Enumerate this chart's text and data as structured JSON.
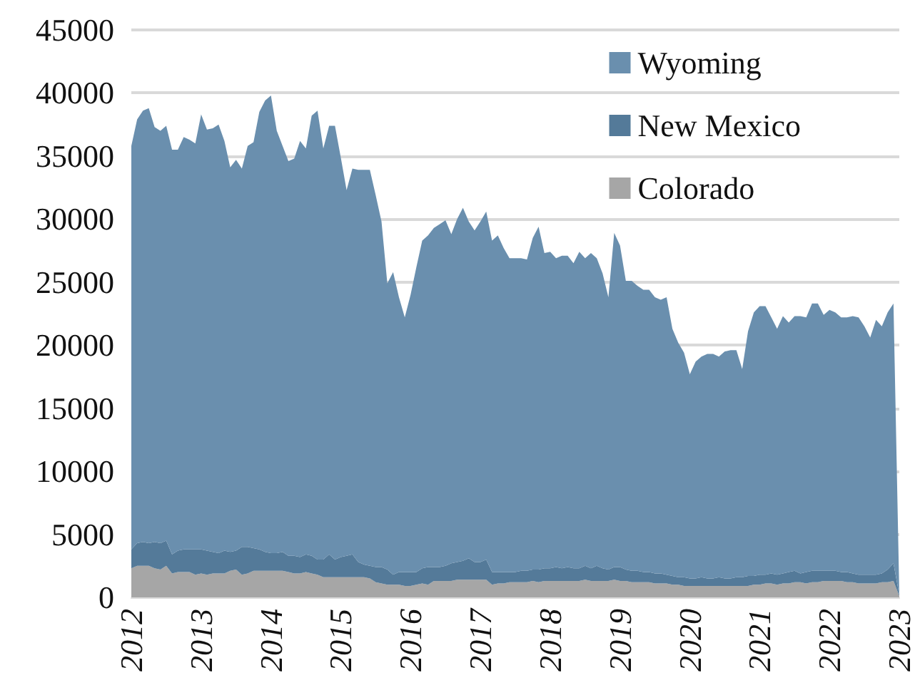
{
  "chart_data": {
    "type": "area",
    "stacked": true,
    "grid": "y",
    "legend": "top right",
    "ylim": [
      0,
      45000
    ],
    "yticks": [
      0,
      5000,
      10000,
      15000,
      20000,
      25000,
      30000,
      35000,
      40000,
      45000
    ],
    "categories": [
      "2012",
      null,
      null,
      null,
      null,
      null,
      null,
      null,
      null,
      null,
      null,
      null,
      "2013",
      null,
      null,
      null,
      null,
      null,
      null,
      null,
      null,
      null,
      null,
      null,
      "2014",
      null,
      null,
      null,
      null,
      null,
      null,
      null,
      null,
      null,
      null,
      null,
      "2015",
      null,
      null,
      null,
      null,
      null,
      null,
      null,
      null,
      null,
      null,
      null,
      "2016",
      null,
      null,
      null,
      null,
      null,
      null,
      null,
      null,
      null,
      null,
      null,
      "2017",
      null,
      null,
      null,
      null,
      null,
      null,
      null,
      null,
      null,
      null,
      null,
      "2018",
      null,
      null,
      null,
      null,
      null,
      null,
      null,
      null,
      null,
      null,
      null,
      "2019",
      null,
      null,
      null,
      null,
      null,
      null,
      null,
      null,
      null,
      null,
      null,
      "2020",
      null,
      null,
      null,
      null,
      null,
      null,
      null,
      null,
      null,
      null,
      null,
      "2021",
      null,
      null,
      null,
      null,
      null,
      null,
      null,
      null,
      null,
      null,
      null,
      "2022",
      null,
      null,
      null,
      null,
      null,
      null,
      null,
      null,
      null,
      null,
      null,
      "2023"
    ],
    "series": [
      {
        "name": "Colorado",
        "color": "#a6a6a6",
        "values": [
          2300,
          2500,
          2500,
          2500,
          2300,
          2200,
          2500,
          1900,
          2000,
          2000,
          2000,
          1800,
          1900,
          1800,
          1900,
          1900,
          1900,
          2100,
          2200,
          1800,
          1900,
          2100,
          2100,
          2100,
          2100,
          2100,
          2100,
          2000,
          1900,
          1900,
          2000,
          1900,
          1800,
          1600,
          1600,
          1600,
          1600,
          1600,
          1600,
          1600,
          1600,
          1500,
          1200,
          1100,
          1000,
          1000,
          1000,
          900,
          900,
          1000,
          1100,
          1000,
          1300,
          1300,
          1300,
          1300,
          1400,
          1400,
          1400,
          1400,
          1400,
          1400,
          1000,
          1100,
          1100,
          1200,
          1200,
          1200,
          1200,
          1300,
          1200,
          1300,
          1300,
          1300,
          1300,
          1300,
          1300,
          1300,
          1400,
          1300,
          1300,
          1300,
          1300,
          1400,
          1300,
          1300,
          1200,
          1200,
          1200,
          1200,
          1100,
          1100,
          1100,
          1000,
          1000,
          900,
          900,
          900,
          900,
          900,
          900,
          900,
          900,
          900,
          900,
          900,
          900,
          1000,
          1000,
          1100,
          1100,
          1000,
          1100,
          1100,
          1200,
          1200,
          1100,
          1200,
          1200,
          1300,
          1300,
          1300,
          1300,
          1200,
          1200,
          1100,
          1100,
          1100,
          1100,
          1200,
          1200,
          1300,
          100
        ]
      },
      {
        "name": "New Mexico",
        "color": "#547a99",
        "values": [
          1500,
          1800,
          1900,
          1800,
          2100,
          2100,
          2000,
          1500,
          1700,
          1800,
          1800,
          2000,
          1900,
          1900,
          1700,
          1600,
          1800,
          1500,
          1500,
          2200,
          2100,
          1800,
          1700,
          1500,
          1400,
          1400,
          1500,
          1300,
          1400,
          1300,
          1400,
          1400,
          1200,
          1400,
          1800,
          1400,
          1600,
          1700,
          1800,
          1200,
          1000,
          1000,
          1200,
          1300,
          1200,
          800,
          1000,
          1100,
          1100,
          1000,
          1200,
          1400,
          1100,
          1100,
          1200,
          1400,
          1400,
          1500,
          1700,
          1400,
          1400,
          1600,
          1000,
          900,
          900,
          800,
          800,
          900,
          900,
          900,
          1000,
          1000,
          1000,
          1100,
          1000,
          1100,
          1000,
          1000,
          1100,
          1000,
          1200,
          1000,
          900,
          1000,
          1100,
          900,
          900,
          900,
          800,
          800,
          800,
          800,
          700,
          700,
          600,
          700,
          600,
          600,
          700,
          600,
          600,
          700,
          600,
          600,
          700,
          700,
          800,
          700,
          800,
          700,
          800,
          800,
          800,
          900,
          900,
          700,
          900,
          900,
          900,
          800,
          800,
          800,
          700,
          800,
          700,
          700,
          700,
          700,
          700,
          700,
          1000,
          1400,
          100
        ]
      },
      {
        "name": "Wyoming",
        "color": "#6a8fae",
        "values": [
          32000,
          33600,
          34200,
          34500,
          32900,
          32700,
          32900,
          32100,
          31800,
          32700,
          32500,
          32200,
          34500,
          33400,
          33600,
          34000,
          32500,
          30500,
          31000,
          30000,
          31800,
          32200,
          34700,
          35800,
          36300,
          33500,
          32200,
          31300,
          31500,
          33000,
          32200,
          34900,
          35600,
          32600,
          34000,
          34400,
          31700,
          29000,
          30600,
          31100,
          31300,
          31400,
          29500,
          27400,
          22700,
          24000,
          21800,
          20200,
          22000,
          24200,
          26000,
          26300,
          26900,
          27200,
          27400,
          26100,
          27200,
          28000,
          26700,
          26300,
          27000,
          27600,
          26300,
          26700,
          25700,
          24900,
          24900,
          24800,
          24700,
          26300,
          27200,
          25000,
          25100,
          24500,
          24800,
          24700,
          24200,
          25100,
          24400,
          25000,
          24400,
          23400,
          21600,
          26500,
          25500,
          22900,
          23000,
          22600,
          22400,
          22400,
          21900,
          21700,
          22000,
          19600,
          18600,
          17800,
          16200,
          17200,
          17500,
          17800,
          17800,
          17500,
          18000,
          18100,
          18000,
          16500,
          19400,
          20900,
          21300,
          21300,
          20300,
          19500,
          20400,
          19800,
          20200,
          20400,
          20200,
          21200,
          21200,
          20300,
          20700,
          20500,
          20200,
          20200,
          20400,
          20400,
          19700,
          18800,
          20200,
          19600,
          20400,
          20600,
          100
        ]
      }
    ]
  }
}
